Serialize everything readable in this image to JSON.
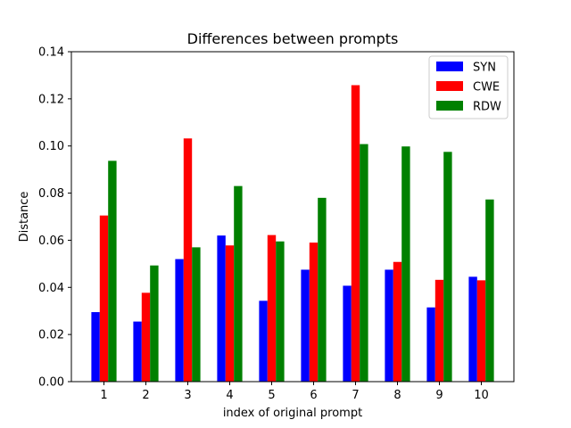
{
  "chart_data": {
    "type": "bar",
    "title": "Differences between prompts",
    "xlabel": "index of original prompt",
    "ylabel": "Distance",
    "categories": [
      "1",
      "2",
      "3",
      "4",
      "5",
      "6",
      "7",
      "8",
      "9",
      "10"
    ],
    "ylim": [
      0,
      0.14
    ],
    "yticks": [
      "0.00",
      "0.02",
      "0.04",
      "0.06",
      "0.08",
      "0.10",
      "0.12",
      "0.14"
    ],
    "grid": false,
    "legend_position": "top-right",
    "series": [
      {
        "name": "SYN",
        "color": "#0000ff",
        "values": [
          0.0295,
          0.0255,
          0.052,
          0.062,
          0.0343,
          0.0475,
          0.0407,
          0.0475,
          0.0315,
          0.0445
        ]
      },
      {
        "name": "CWE",
        "color": "#ff0000",
        "values": [
          0.0705,
          0.0377,
          0.1032,
          0.0578,
          0.0622,
          0.059,
          0.1258,
          0.0508,
          0.0432,
          0.043
        ]
      },
      {
        "name": "RDW",
        "color": "#008000",
        "values": [
          0.0937,
          0.0493,
          0.057,
          0.083,
          0.0595,
          0.078,
          0.1008,
          0.0998,
          0.0975,
          0.0773
        ]
      }
    ]
  }
}
